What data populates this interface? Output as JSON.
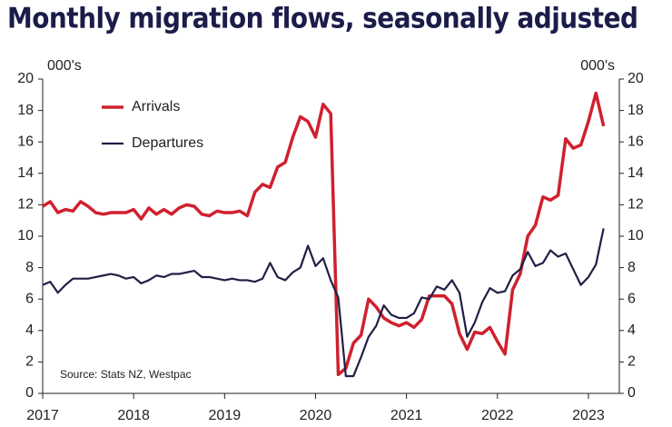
{
  "chart_data": {
    "type": "line",
    "title": "Monthly migration flows, seasonally adjusted",
    "y_label": "000's",
    "y2_label": "000's",
    "source": "Source: Stats NZ, Westpac",
    "x": [
      2017,
      2017.083,
      2017.167,
      2017.25,
      2017.333,
      2017.417,
      2017.5,
      2017.583,
      2017.667,
      2017.75,
      2017.833,
      2017.917,
      2018,
      2018.083,
      2018.167,
      2018.25,
      2018.333,
      2018.417,
      2018.5,
      2018.583,
      2018.667,
      2018.75,
      2018.833,
      2018.917,
      2019,
      2019.083,
      2019.167,
      2019.25,
      2019.333,
      2019.417,
      2019.5,
      2019.583,
      2019.667,
      2019.75,
      2019.833,
      2019.917,
      2020,
      2020.083,
      2020.167,
      2020.25,
      2020.333,
      2020.417,
      2020.5,
      2020.583,
      2020.667,
      2020.75,
      2020.833,
      2020.917,
      2021,
      2021.083,
      2021.167,
      2021.25,
      2021.333,
      2021.417,
      2021.5,
      2021.583,
      2021.667,
      2021.75,
      2021.833,
      2021.917,
      2022,
      2022.083,
      2022.167,
      2022.25,
      2022.333,
      2022.417,
      2022.5,
      2022.583,
      2022.667,
      2022.75,
      2022.833,
      2022.917,
      2023,
      2023.083,
      2023.167
    ],
    "series": [
      {
        "name": "Arrivals",
        "color": "#d0202e",
        "values": [
          11.9,
          12.2,
          11.5,
          11.7,
          11.6,
          12.2,
          11.9,
          11.5,
          11.4,
          11.5,
          11.5,
          11.5,
          11.7,
          11.1,
          11.8,
          11.4,
          11.7,
          11.4,
          11.8,
          12.0,
          11.9,
          11.4,
          11.3,
          11.6,
          11.5,
          11.5,
          11.6,
          11.3,
          12.8,
          13.3,
          13.1,
          14.4,
          14.7,
          16.3,
          17.6,
          17.3,
          16.3,
          18.4,
          17.8,
          1.2,
          1.6,
          3.2,
          3.7,
          6.0,
          5.5,
          4.8,
          4.5,
          4.3,
          4.5,
          4.2,
          4.7,
          6.2,
          6.2,
          6.2,
          5.7,
          3.8,
          2.8,
          3.9,
          3.8,
          4.2,
          3.3,
          2.5,
          6.6,
          7.6,
          10.0,
          10.7,
          12.5,
          12.3,
          12.6,
          16.2,
          15.6,
          15.8,
          17.3,
          19.1,
          17.0
        ]
      },
      {
        "name": "Departures",
        "color": "#1f1f47",
        "values": [
          6.9,
          7.1,
          6.4,
          6.9,
          7.3,
          7.3,
          7.3,
          7.4,
          7.5,
          7.6,
          7.5,
          7.3,
          7.4,
          7.0,
          7.2,
          7.5,
          7.4,
          7.6,
          7.6,
          7.7,
          7.8,
          7.4,
          7.4,
          7.3,
          7.2,
          7.3,
          7.2,
          7.2,
          7.1,
          7.3,
          8.3,
          7.4,
          7.2,
          7.7,
          8.0,
          9.4,
          8.1,
          8.6,
          7.2,
          6.1,
          1.1,
          1.1,
          2.3,
          3.6,
          4.3,
          5.6,
          5.0,
          4.8,
          4.8,
          5.1,
          6.1,
          6.0,
          6.8,
          6.6,
          7.2,
          6.4,
          3.6,
          4.5,
          5.8,
          6.7,
          6.4,
          6.5,
          7.5,
          7.9,
          9.0,
          8.1,
          8.3,
          9.1,
          8.7,
          8.9,
          7.9,
          6.9,
          7.4,
          8.2,
          10.5
        ]
      }
    ],
    "xlim": [
      2017,
      2023.34
    ],
    "xticks": [
      2017,
      2018,
      2019,
      2020,
      2021,
      2022,
      2023
    ],
    "ylim": [
      0,
      20
    ],
    "yticks": [
      0,
      2,
      4,
      6,
      8,
      10,
      12,
      14,
      16,
      18,
      20
    ],
    "y2lim": [
      0,
      20
    ],
    "y2ticks": [
      0,
      2,
      4,
      6,
      8,
      10,
      12,
      14,
      16,
      18,
      20
    ],
    "grid": false
  }
}
